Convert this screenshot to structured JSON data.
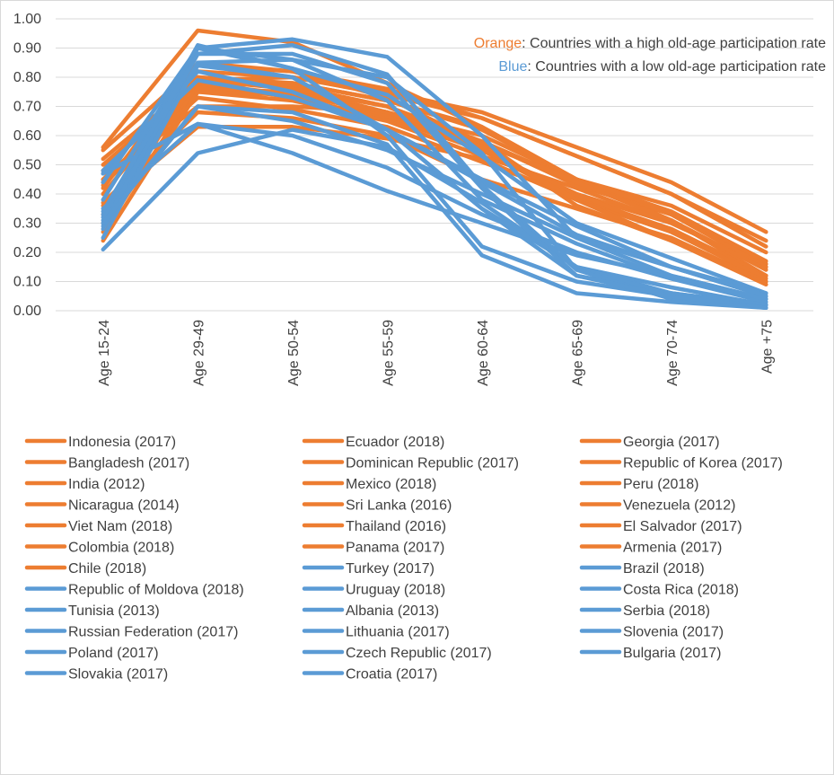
{
  "chart_data": {
    "type": "line",
    "categories": [
      "Age 15-24",
      "Age 29-49",
      "Age 50-54",
      "Age 55-59",
      "Age 60-64",
      "Age 65-69",
      "Age 70-74",
      "Age +75"
    ],
    "ylim": [
      0,
      1.0
    ],
    "yticks": [
      "0.00",
      "0.10",
      "0.20",
      "0.30",
      "0.40",
      "0.50",
      "0.60",
      "0.70",
      "0.80",
      "0.90",
      "1.00"
    ],
    "grid": true,
    "legend_position": "bottom",
    "annotations": [
      {
        "colored": "Orange",
        "rest": ": Countries with a high old-age participation rate",
        "color": "#ED7D31"
      },
      {
        "colored": "Blue",
        "rest": ": Countries with a low old-age participation rate",
        "color": "#5B9BD5"
      }
    ],
    "colors": {
      "high": "#ED7D31",
      "low": "#5B9BD5",
      "grid": "#d9d9d9",
      "text": "#404040"
    },
    "series": [
      {
        "name": "Indonesia (2017)",
        "group": "high",
        "values": [
          0.52,
          0.79,
          0.8,
          0.75,
          0.68,
          0.56,
          0.44,
          0.27
        ]
      },
      {
        "name": "Ecuador (2018)",
        "group": "high",
        "values": [
          0.48,
          0.82,
          0.8,
          0.74,
          0.66,
          0.53,
          0.4,
          0.22
        ]
      },
      {
        "name": "Georgia (2017)",
        "group": "high",
        "values": [
          0.33,
          0.8,
          0.78,
          0.72,
          0.62,
          0.45,
          0.36,
          0.2
        ]
      },
      {
        "name": "Bangladesh (2017)",
        "group": "high",
        "values": [
          0.45,
          0.7,
          0.7,
          0.68,
          0.6,
          0.45,
          0.33,
          0.16
        ]
      },
      {
        "name": "Dominican Republic (2017)",
        "group": "high",
        "values": [
          0.44,
          0.78,
          0.73,
          0.66,
          0.55,
          0.4,
          0.3,
          0.15
        ]
      },
      {
        "name": "Republic of Korea (2017)",
        "group": "high",
        "values": [
          0.27,
          0.77,
          0.78,
          0.72,
          0.63,
          0.45,
          0.33,
          0.16
        ]
      },
      {
        "name": "India (2012)",
        "group": "high",
        "values": [
          0.36,
          0.63,
          0.63,
          0.59,
          0.52,
          0.38,
          0.27,
          0.12
        ]
      },
      {
        "name": "Mexico (2018)",
        "group": "high",
        "values": [
          0.45,
          0.75,
          0.72,
          0.65,
          0.53,
          0.42,
          0.3,
          0.15
        ]
      },
      {
        "name": "Peru (2018)",
        "group": "high",
        "values": [
          0.55,
          0.84,
          0.82,
          0.76,
          0.66,
          0.53,
          0.4,
          0.24
        ]
      },
      {
        "name": "Nicaragua (2014)",
        "group": "high",
        "values": [
          0.5,
          0.78,
          0.74,
          0.68,
          0.58,
          0.43,
          0.33,
          0.15
        ]
      },
      {
        "name": "Sri Lanka (2016)",
        "group": "high",
        "values": [
          0.37,
          0.68,
          0.66,
          0.6,
          0.45,
          0.35,
          0.25,
          0.1
        ]
      },
      {
        "name": "Venezuela (2012)",
        "group": "high",
        "values": [
          0.43,
          0.76,
          0.75,
          0.67,
          0.55,
          0.38,
          0.28,
          0.12
        ]
      },
      {
        "name": "Viet Nam (2018)",
        "group": "high",
        "values": [
          0.56,
          0.96,
          0.92,
          0.78,
          0.63,
          0.45,
          0.34,
          0.17
        ]
      },
      {
        "name": "Thailand (2016)",
        "group": "high",
        "values": [
          0.42,
          0.85,
          0.82,
          0.73,
          0.57,
          0.45,
          0.31,
          0.12
        ]
      },
      {
        "name": "El Salvador (2017)",
        "group": "high",
        "values": [
          0.44,
          0.73,
          0.69,
          0.63,
          0.51,
          0.39,
          0.28,
          0.12
        ]
      },
      {
        "name": "Colombia (2018)",
        "group": "high",
        "values": [
          0.48,
          0.8,
          0.77,
          0.7,
          0.58,
          0.44,
          0.31,
          0.14
        ]
      },
      {
        "name": "Panama (2017)",
        "group": "high",
        "values": [
          0.4,
          0.79,
          0.76,
          0.68,
          0.55,
          0.4,
          0.27,
          0.11
        ]
      },
      {
        "name": "Armenia (2017)",
        "group": "high",
        "values": [
          0.24,
          0.75,
          0.74,
          0.68,
          0.58,
          0.36,
          0.24,
          0.1
        ]
      },
      {
        "name": "Chile (2018)",
        "group": "high",
        "values": [
          0.3,
          0.8,
          0.76,
          0.7,
          0.56,
          0.38,
          0.24,
          0.09
        ]
      },
      {
        "name": "Turkey (2017)",
        "group": "low",
        "values": [
          0.47,
          0.64,
          0.54,
          0.41,
          0.3,
          0.19,
          0.12,
          0.04
        ]
      },
      {
        "name": "Brazil (2018)",
        "group": "low",
        "values": [
          0.47,
          0.82,
          0.75,
          0.62,
          0.44,
          0.26,
          0.15,
          0.06
        ]
      },
      {
        "name": "Republic of Moldova (2018)",
        "group": "low",
        "values": [
          0.21,
          0.54,
          0.62,
          0.56,
          0.37,
          0.15,
          0.08,
          0.02
        ]
      },
      {
        "name": "Uruguay (2018)",
        "group": "low",
        "values": [
          0.44,
          0.9,
          0.83,
          0.74,
          0.53,
          0.3,
          0.18,
          0.06
        ]
      },
      {
        "name": "Costa Rica (2018)",
        "group": "low",
        "values": [
          0.48,
          0.79,
          0.73,
          0.62,
          0.45,
          0.29,
          0.15,
          0.05
        ]
      },
      {
        "name": "Tunisia (2013)",
        "group": "low",
        "values": [
          0.35,
          0.64,
          0.6,
          0.49,
          0.33,
          0.2,
          0.11,
          0.04
        ]
      },
      {
        "name": "Albania (2013)",
        "group": "low",
        "values": [
          0.31,
          0.7,
          0.65,
          0.55,
          0.4,
          0.25,
          0.15,
          0.05
        ]
      },
      {
        "name": "Serbia (2018)",
        "group": "low",
        "values": [
          0.28,
          0.85,
          0.8,
          0.62,
          0.35,
          0.12,
          0.06,
          0.02
        ]
      },
      {
        "name": "Russian Federation (2017)",
        "group": "low",
        "values": [
          0.38,
          0.9,
          0.86,
          0.72,
          0.38,
          0.23,
          0.11,
          0.03
        ]
      },
      {
        "name": "Lithuania (2017)",
        "group": "low",
        "values": [
          0.3,
          0.9,
          0.93,
          0.87,
          0.6,
          0.25,
          0.12,
          0.04
        ]
      },
      {
        "name": "Slovenia (2017)",
        "group": "low",
        "values": [
          0.33,
          0.91,
          0.83,
          0.6,
          0.22,
          0.1,
          0.05,
          0.02
        ]
      },
      {
        "name": "Poland (2017)",
        "group": "low",
        "values": [
          0.32,
          0.84,
          0.8,
          0.62,
          0.35,
          0.15,
          0.06,
          0.02
        ]
      },
      {
        "name": "Czech Republic (2017)",
        "group": "low",
        "values": [
          0.29,
          0.88,
          0.91,
          0.81,
          0.43,
          0.14,
          0.06,
          0.01
        ]
      },
      {
        "name": "Bulgaria (2017)",
        "group": "low",
        "values": [
          0.25,
          0.85,
          0.86,
          0.8,
          0.54,
          0.14,
          0.04,
          0.01
        ]
      },
      {
        "name": "Slovakia (2017)",
        "group": "low",
        "values": [
          0.34,
          0.88,
          0.88,
          0.78,
          0.42,
          0.12,
          0.05,
          0.01
        ]
      },
      {
        "name": "Croatia (2017)",
        "group": "low",
        "values": [
          0.3,
          0.7,
          0.68,
          0.57,
          0.19,
          0.06,
          0.03,
          0.01
        ]
      }
    ]
  }
}
